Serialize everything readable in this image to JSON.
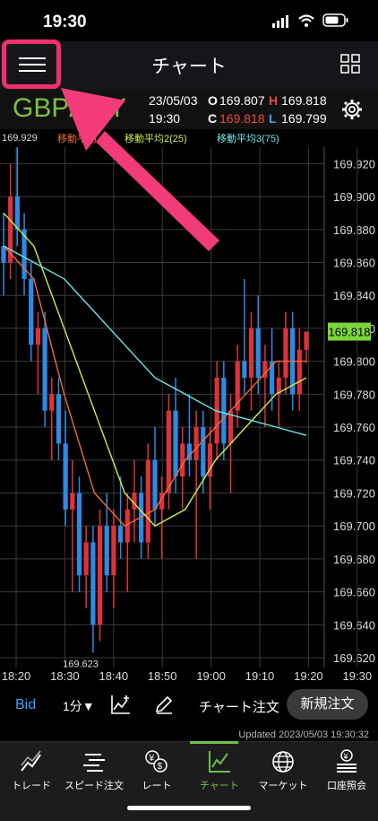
{
  "status": {
    "time": "19:30"
  },
  "nav": {
    "title": "チャート"
  },
  "info": {
    "symbol": "GBP/JPY",
    "date": "23/05/03",
    "time": "19:30",
    "open_label": "O",
    "open": "169.807",
    "high_label": "H",
    "high": "169.818",
    "close_label": "C",
    "close": "169.818",
    "low_label": "L",
    "low": "169.799"
  },
  "legend": {
    "high_label": "169.929",
    "ma1": "移動平均",
    "ma2": "移動平均2(25)",
    "ma3": "移動平均3(75)",
    "colors": {
      "ma1": "#f06a3c",
      "ma2": "#c8f04a",
      "ma3": "#6ee6e6"
    }
  },
  "chart_data": {
    "type": "candlestick",
    "x_ticks": [
      "18:20",
      "18:30",
      "18:40",
      "18:50",
      "19:00",
      "19:10",
      "19:20",
      "19:30"
    ],
    "y_ticks": [
      "169.920",
      "169.900",
      "169.880",
      "169.860",
      "169.840",
      "169.820",
      "169.800",
      "169.780",
      "169.760",
      "169.740",
      "169.720",
      "169.700",
      "169.680",
      "169.660",
      "169.640",
      "169.620"
    ],
    "ylim": [
      169.614,
      169.93
    ],
    "current_price": "169.818",
    "high_annotation": "169.929",
    "low_annotation": "169.623",
    "series": [
      {
        "name": "移動平均",
        "color": "#f06a3c",
        "values": [
          169.87,
          169.85,
          169.78,
          169.72,
          169.7,
          169.71,
          169.74,
          169.76,
          169.78,
          169.8,
          169.8
        ]
      },
      {
        "name": "移動平均2(25)",
        "color": "#c8f04a",
        "values": [
          169.89,
          169.87,
          169.82,
          169.77,
          169.72,
          169.7,
          169.71,
          169.74,
          169.76,
          169.78,
          169.79
        ]
      },
      {
        "name": "移動平均3(75)",
        "color": "#6ee6e6",
        "values": [
          169.87,
          169.86,
          169.85,
          169.83,
          169.81,
          169.79,
          169.78,
          169.77,
          169.765,
          169.76,
          169.755
        ]
      }
    ],
    "candles": [
      [
        169.87,
        169.89,
        169.84,
        169.86
      ],
      [
        169.86,
        169.92,
        169.85,
        169.9
      ],
      [
        169.9,
        169.93,
        169.87,
        169.88
      ],
      [
        169.88,
        169.89,
        169.84,
        169.85
      ],
      [
        169.85,
        169.86,
        169.8,
        169.81
      ],
      [
        169.81,
        169.83,
        169.78,
        169.82
      ],
      [
        169.82,
        169.83,
        169.76,
        169.77
      ],
      [
        169.77,
        169.79,
        169.74,
        169.78
      ],
      [
        169.78,
        169.79,
        169.74,
        169.75
      ],
      [
        169.75,
        169.77,
        169.7,
        169.71
      ],
      [
        169.71,
        169.74,
        169.66,
        169.72
      ],
      [
        169.72,
        169.73,
        169.66,
        169.67
      ],
      [
        169.67,
        169.7,
        169.65,
        169.69
      ],
      [
        169.69,
        169.7,
        169.623,
        169.64
      ],
      [
        169.64,
        169.71,
        169.63,
        169.7
      ],
      [
        169.7,
        169.72,
        169.66,
        169.67
      ],
      [
        169.67,
        169.71,
        169.65,
        169.7
      ],
      [
        169.7,
        169.73,
        169.68,
        169.69
      ],
      [
        169.69,
        169.72,
        169.66,
        169.71
      ],
      [
        169.71,
        169.74,
        169.69,
        169.72
      ],
      [
        169.72,
        169.73,
        169.68,
        169.69
      ],
      [
        169.69,
        169.75,
        169.68,
        169.74
      ],
      [
        169.74,
        169.76,
        169.7,
        169.71
      ],
      [
        169.71,
        169.73,
        169.68,
        169.72
      ],
      [
        169.72,
        169.78,
        169.71,
        169.77
      ],
      [
        169.77,
        169.79,
        169.72,
        169.73
      ],
      [
        169.73,
        169.76,
        169.71,
        169.75
      ],
      [
        169.75,
        169.78,
        169.73,
        169.74
      ],
      [
        169.74,
        169.77,
        169.68,
        169.76
      ],
      [
        169.76,
        169.77,
        169.72,
        169.73
      ],
      [
        169.73,
        169.76,
        169.71,
        169.75
      ],
      [
        169.75,
        169.8,
        169.74,
        169.79
      ],
      [
        169.79,
        169.8,
        169.74,
        169.75
      ],
      [
        169.75,
        169.78,
        169.72,
        169.77
      ],
      [
        169.77,
        169.81,
        169.76,
        169.8
      ],
      [
        169.8,
        169.85,
        169.78,
        169.79
      ],
      [
        169.79,
        169.83,
        169.77,
        169.82
      ],
      [
        169.82,
        169.84,
        169.78,
        169.79
      ],
      [
        169.79,
        169.81,
        169.76,
        169.8
      ],
      [
        169.8,
        169.82,
        169.77,
        169.78
      ],
      [
        169.78,
        169.8,
        169.76,
        169.79
      ],
      [
        169.79,
        169.83,
        169.78,
        169.82
      ],
      [
        169.82,
        169.83,
        169.77,
        169.78
      ],
      [
        169.78,
        169.82,
        169.77,
        169.807
      ],
      [
        169.807,
        169.818,
        169.799,
        169.818
      ]
    ]
  },
  "toolbar": {
    "bid": "Bid",
    "interval": "1分▼",
    "chart_order": "チャート注文",
    "new_order": "新規注文"
  },
  "updated": "Updated  2023/05/03 19:30:32",
  "tabs": [
    {
      "label": "トレード",
      "icon": "trend-icon"
    },
    {
      "label": "スピード注文",
      "icon": "speed-icon"
    },
    {
      "label": "レート",
      "icon": "yen-dollar-icon"
    },
    {
      "label": "チャート",
      "icon": "chart-icon"
    },
    {
      "label": "マーケット",
      "icon": "globe-icon"
    },
    {
      "label": "口座照会",
      "icon": "account-icon"
    }
  ]
}
